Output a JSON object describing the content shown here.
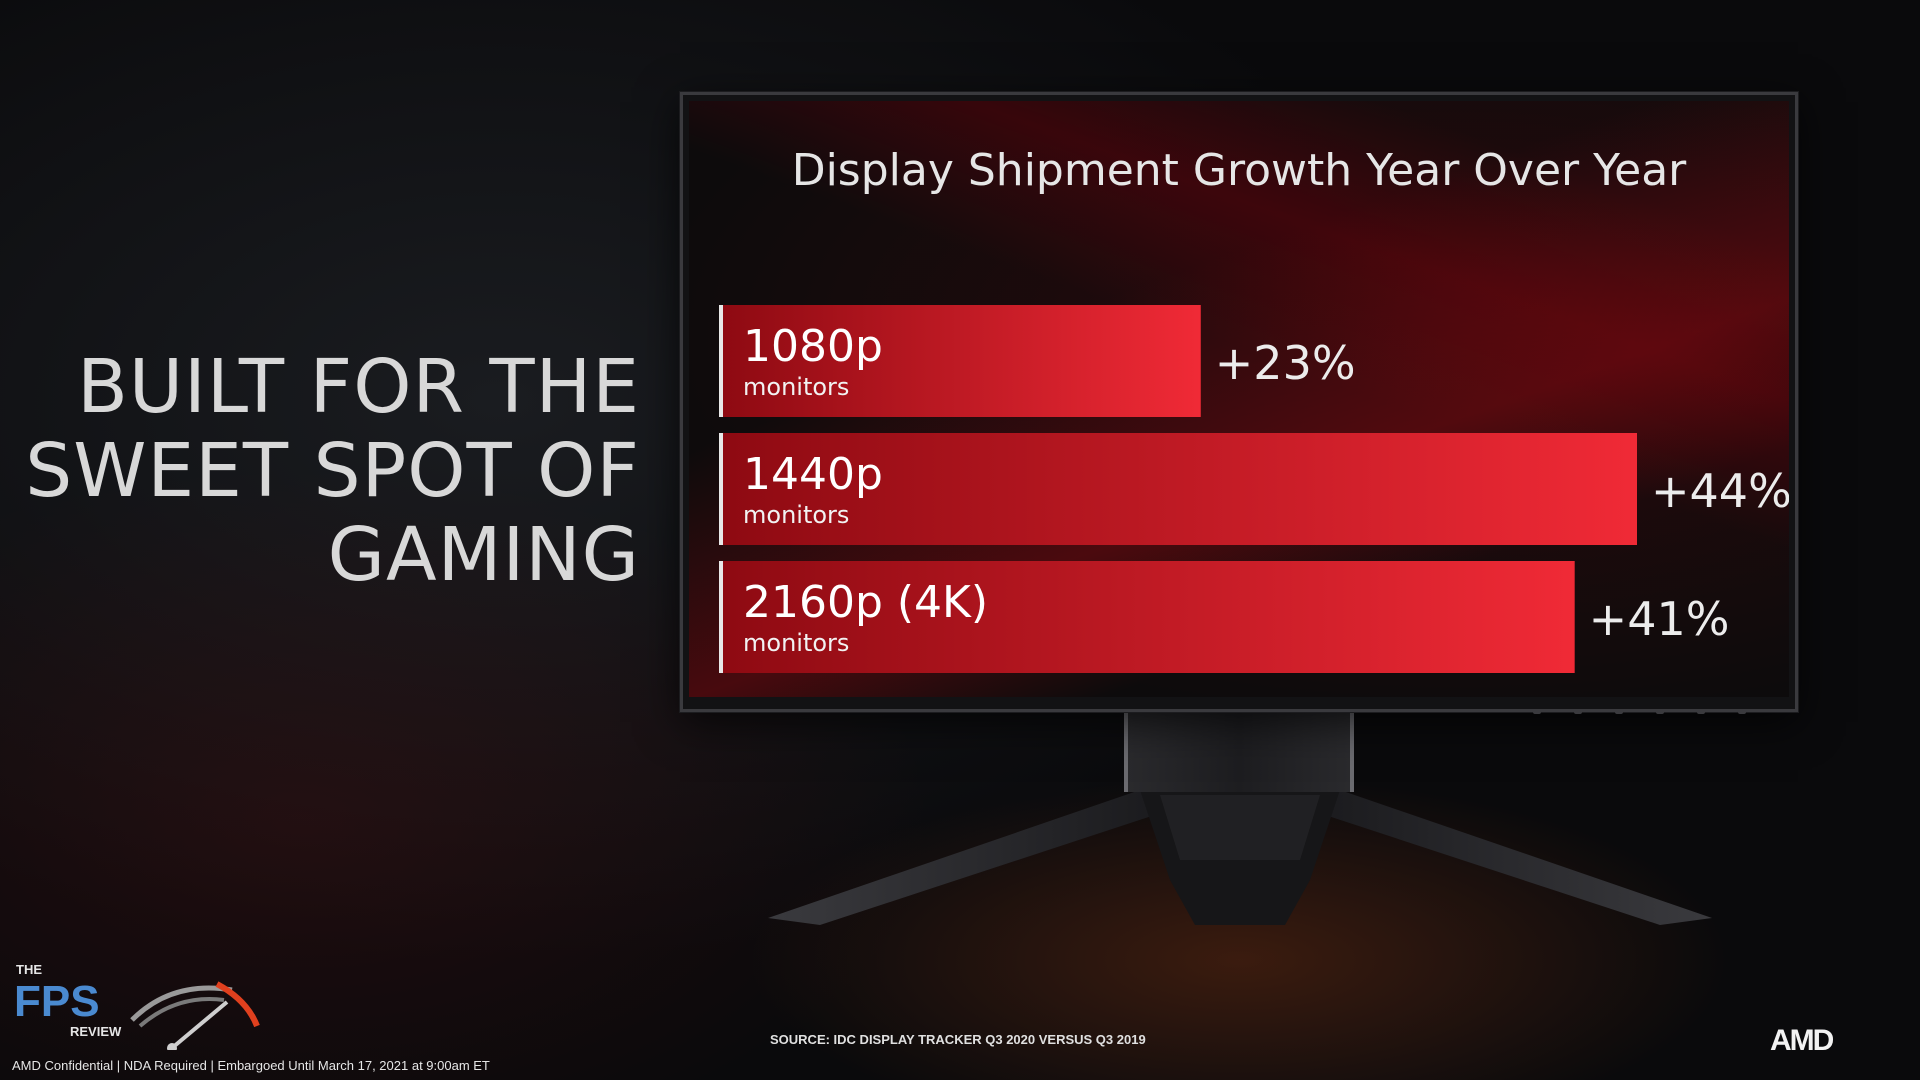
{
  "headline": {
    "lines": [
      "BUILT FOR THE",
      "SWEET SPOT OF",
      "GAMING"
    ]
  },
  "chart_data": {
    "type": "bar",
    "orientation": "horizontal",
    "title": "Display Shipment Growth Year Over Year",
    "categories": [
      "1080p",
      "1440p",
      "2160p (4K)"
    ],
    "category_sublabel": "monitors",
    "values": [
      23,
      44,
      41
    ],
    "value_labels": [
      "+23%",
      "+44%",
      "+41%"
    ],
    "unit": "%",
    "xlim": [
      0,
      50
    ],
    "grid": false,
    "bar_color_start": "#8e0a12",
    "bar_color_end": "#f02a36"
  },
  "source": "SOURCE: IDC DISPLAY TRACKER Q3 2020 VERSUS Q3 2019",
  "footer": "AMD Confidential  |  NDA Required  |  Embargoed Until March 17, 2021 at 9:00am ET",
  "logos": {
    "fps_the": "THE",
    "fps_main": "FPS",
    "fps_review": "REVIEW",
    "amd": "AMD"
  },
  "colors": {
    "background": "#0b0b0d",
    "text": "#d8d8d8",
    "fps_blue": "#4a8ad0",
    "gauge_red": "#e0401e"
  }
}
